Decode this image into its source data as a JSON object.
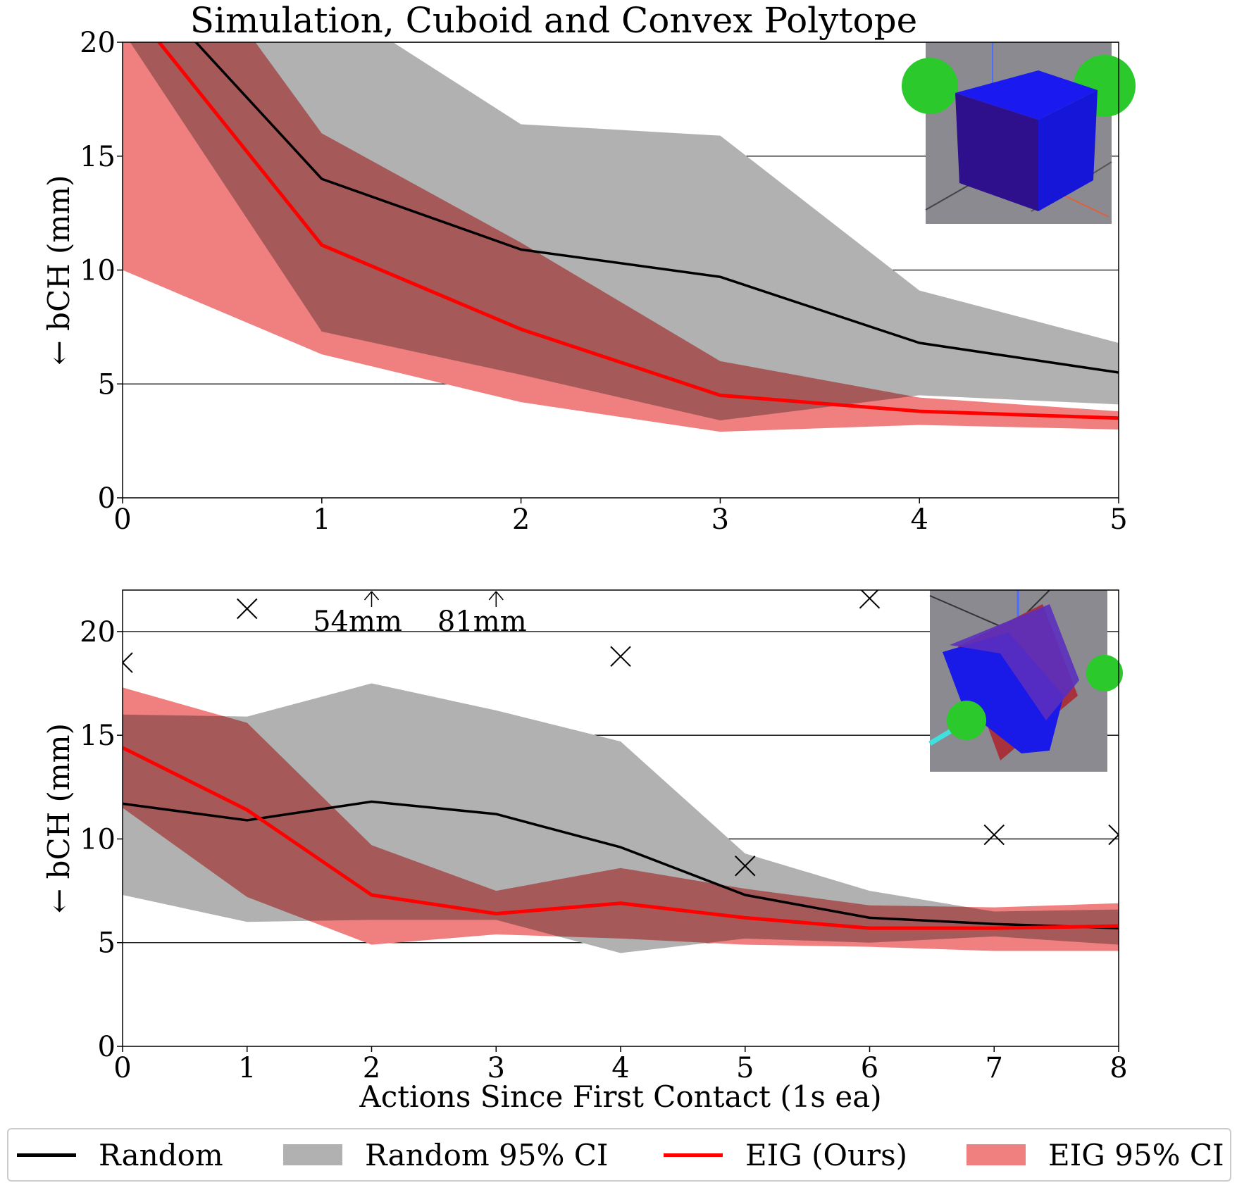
{
  "title": "Simulation, Cuboid and Convex Polytope",
  "colors": {
    "random": "#000000",
    "random_ci": "#b1b1b1",
    "eig": "#ff0000",
    "eig_ci": "#f08080"
  },
  "legend": {
    "items": [
      {
        "label": "Random",
        "kind": "line",
        "color": "#000000"
      },
      {
        "label": "Random 95% CI",
        "kind": "patch",
        "color": "#b1b1b1"
      },
      {
        "label": "EIG (Ours)",
        "kind": "line",
        "color": "#ff0000"
      },
      {
        "label": "EIG 95% CI",
        "kind": "patch",
        "color": "#f08080"
      }
    ]
  },
  "chart_data": [
    {
      "type": "line",
      "title": "Simulation, Cuboid and Convex Polytope",
      "xlabel": "",
      "ylabel": "← bCH (mm)",
      "xlim": [
        0,
        5
      ],
      "ylim": [
        0,
        20
      ],
      "xticks": [
        0,
        1,
        2,
        3,
        4,
        5
      ],
      "yticks": [
        0,
        5,
        10,
        15,
        20
      ],
      "grid": "horizontal",
      "inset_image": "cuboid-render",
      "series": [
        {
          "name": "Random",
          "x": [
            0,
            1,
            2,
            3,
            4,
            5
          ],
          "values": [
            23.5,
            14.0,
            10.9,
            9.7,
            6.8,
            5.5
          ]
        },
        {
          "name": "Random 95% CI",
          "x": [
            0,
            1,
            2,
            3,
            4,
            5
          ],
          "lower": [
            20.5,
            7.3,
            5.4,
            3.4,
            4.5,
            4.1
          ],
          "upper": [
            30.0,
            22.0,
            16.4,
            15.9,
            9.1,
            6.8
          ]
        },
        {
          "name": "EIG (Ours)",
          "x": [
            0,
            1,
            2,
            3,
            4,
            5
          ],
          "values": [
            22.0,
            11.1,
            7.4,
            4.5,
            3.8,
            3.5
          ]
        },
        {
          "name": "EIG 95% CI",
          "x": [
            0,
            1,
            2,
            3,
            4,
            5
          ],
          "lower": [
            10.0,
            6.3,
            4.2,
            2.9,
            3.2,
            3.0
          ],
          "upper": [
            28.0,
            16.0,
            11.2,
            6.0,
            4.4,
            3.8
          ]
        }
      ]
    },
    {
      "type": "line",
      "title": "",
      "xlabel": "Actions Since First Contact (1s ea)",
      "ylabel": "← bCH (mm)",
      "xlim": [
        0,
        8
      ],
      "ylim": [
        0,
        22
      ],
      "xticks": [
        0,
        1,
        2,
        3,
        4,
        5,
        6,
        7,
        8
      ],
      "yticks": [
        0,
        5,
        10,
        15,
        20
      ],
      "grid": "horizontal",
      "inset_image": "polytope-render",
      "series": [
        {
          "name": "Random",
          "x": [
            0,
            1,
            2,
            3,
            4,
            5,
            6,
            7,
            8
          ],
          "values": [
            11.7,
            10.9,
            11.8,
            11.2,
            9.6,
            7.3,
            6.2,
            5.9,
            5.7
          ]
        },
        {
          "name": "Random 95% CI",
          "x": [
            0,
            1,
            2,
            3,
            4,
            5,
            6,
            7,
            8
          ],
          "lower": [
            7.3,
            6.0,
            6.1,
            6.1,
            4.5,
            5.2,
            5.0,
            5.3,
            4.9
          ]
        },
        {
          "name": "Random 95% CI",
          "x": [
            0,
            1,
            2,
            3,
            4,
            5,
            6,
            7,
            8
          ],
          "upper": [
            16.0,
            15.9,
            17.5,
            16.2,
            14.7,
            9.3,
            7.5,
            6.5,
            6.6
          ]
        },
        {
          "name": "EIG (Ours)",
          "x": [
            0,
            1,
            2,
            3,
            4,
            5,
            6,
            7,
            8
          ],
          "values": [
            14.4,
            11.4,
            7.3,
            6.4,
            6.9,
            6.2,
            5.7,
            5.7,
            5.8
          ]
        },
        {
          "name": "EIG 95% CI",
          "x": [
            0,
            1,
            2,
            3,
            4,
            5,
            6,
            7,
            8
          ],
          "lower": [
            11.5,
            7.2,
            4.9,
            5.4,
            5.2,
            4.9,
            4.8,
            4.6,
            4.6
          ],
          "upper": [
            17.3,
            15.6,
            9.7,
            7.5,
            8.6,
            7.6,
            6.8,
            6.7,
            6.9
          ]
        }
      ],
      "outliers": [
        {
          "x": 0,
          "y": 18.5
        },
        {
          "x": 1,
          "y": 21.1
        },
        {
          "x": 4,
          "y": 18.8
        },
        {
          "x": 5,
          "y": 8.7
        },
        {
          "x": 6,
          "y": 21.6
        },
        {
          "x": 7,
          "y": 10.2
        },
        {
          "x": 8,
          "y": 10.2
        }
      ],
      "clipped_markers": [
        {
          "x": 2,
          "label": "54mm"
        },
        {
          "x": 3,
          "label": "81mm"
        }
      ]
    }
  ]
}
